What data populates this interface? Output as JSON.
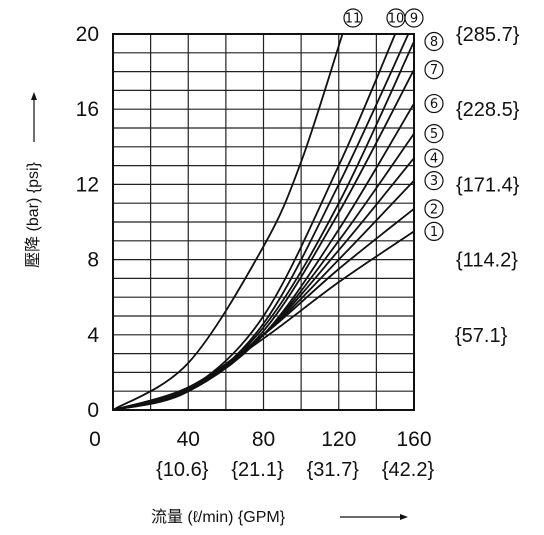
{
  "chart_data": {
    "type": "line",
    "xlabel": "流量 (ℓ/min) {GPM}",
    "ylabel": "壓降 (bar) {psi}",
    "xlim": [
      0,
      160
    ],
    "ylim": [
      0,
      20
    ],
    "x_ticks": [
      "0",
      "40",
      "80",
      "120",
      "160"
    ],
    "x_ticks_secondary": [
      "{10.6}",
      "{21.1}",
      "{31.7}",
      "{42.2}"
    ],
    "y_ticks": [
      "0",
      "4",
      "8",
      "12",
      "16",
      "20"
    ],
    "y_ticks_secondary": [
      "{57.1}",
      "{114.2}",
      "{171.4}",
      "{228.5}",
      "{285.7}"
    ],
    "grid": true,
    "series": [
      {
        "name": "①",
        "x": [
          0,
          40,
          80,
          120,
          160
        ],
        "y": [
          0,
          1.2,
          3.8,
          6.8,
          9.5
        ]
      },
      {
        "name": "②",
        "x": [
          0,
          40,
          80,
          120,
          160
        ],
        "y": [
          0,
          1.2,
          4.0,
          7.5,
          10.7
        ]
      },
      {
        "name": "③",
        "x": [
          0,
          40,
          80,
          120,
          160
        ],
        "y": [
          0,
          1.1,
          4.0,
          8.0,
          12.2
        ]
      },
      {
        "name": "④",
        "x": [
          0,
          40,
          80,
          120,
          160
        ],
        "y": [
          0,
          1.0,
          4.0,
          8.5,
          13.4
        ]
      },
      {
        "name": "⑤",
        "x": [
          0,
          40,
          80,
          120,
          160
        ],
        "y": [
          0,
          1.0,
          4.0,
          9.0,
          14.7
        ]
      },
      {
        "name": "⑥",
        "x": [
          0,
          40,
          80,
          120,
          160
        ],
        "y": [
          0,
          1.0,
          4.0,
          9.6,
          16.3
        ]
      },
      {
        "name": "⑦",
        "x": [
          0,
          40,
          80,
          120,
          160
        ],
        "y": [
          0,
          1.0,
          4.2,
          10.5,
          18.1
        ]
      },
      {
        "name": "⑧",
        "x": [
          0,
          40,
          80,
          120,
          160
        ],
        "y": [
          0,
          1.0,
          4.4,
          11.0,
          19.6
        ]
      },
      {
        "name": "⑨",
        "x": [
          0,
          40,
          80,
          120,
          157
        ],
        "y": [
          0,
          1.0,
          4.6,
          12.0,
          20
        ]
      },
      {
        "name": "⑩",
        "x": [
          0,
          40,
          80,
          120,
          150
        ],
        "y": [
          0,
          1.1,
          5.0,
          13.0,
          20
        ]
      },
      {
        "name": "⑪",
        "x": [
          0,
          40,
          80,
          100,
          122
        ],
        "y": [
          0,
          2.5,
          8.7,
          13.2,
          20
        ]
      }
    ]
  }
}
